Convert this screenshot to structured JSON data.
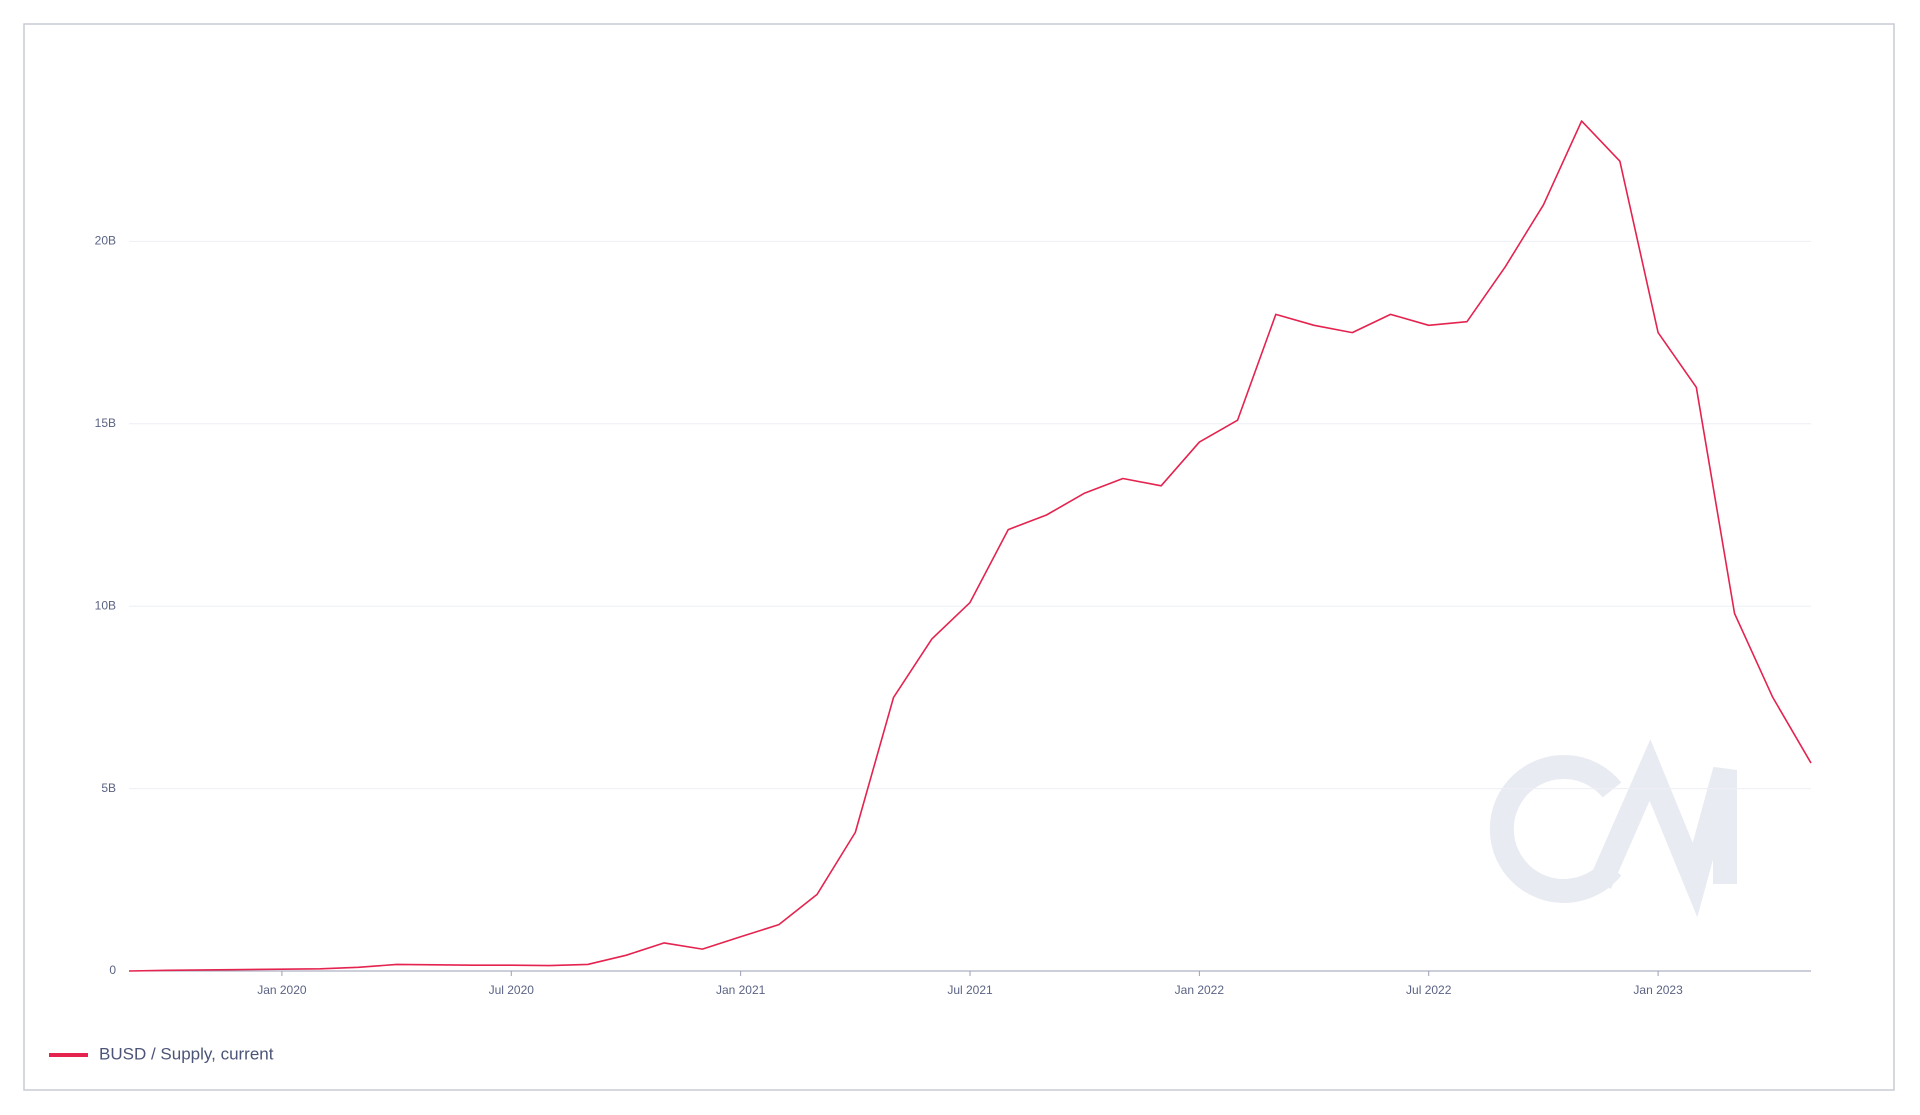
{
  "chart_data": {
    "type": "line",
    "x": [
      "2019-09",
      "2019-10",
      "2019-11",
      "2019-12",
      "2020-01",
      "2020-02",
      "2020-03",
      "2020-04",
      "2020-05",
      "2020-06",
      "2020-07",
      "2020-08",
      "2020-09",
      "2020-10",
      "2020-11",
      "2020-12",
      "2021-01",
      "2021-02",
      "2021-03",
      "2021-04",
      "2021-05",
      "2021-06",
      "2021-07",
      "2021-08",
      "2021-09",
      "2021-10",
      "2021-11",
      "2021-12",
      "2022-01",
      "2022-02",
      "2022-03",
      "2022-04",
      "2022-05",
      "2022-06",
      "2022-07",
      "2022-08",
      "2022-09",
      "2022-10",
      "2022-11",
      "2022-12",
      "2023-01",
      "2023-02",
      "2023-03",
      "2023-04",
      "2023-05"
    ],
    "series": [
      {
        "name": "BUSD / Supply, current",
        "color": "#e4234f",
        "values": [
          0,
          20000000,
          30000000,
          40000000,
          50000000,
          60000000,
          100000000,
          180000000,
          170000000,
          160000000,
          160000000,
          150000000,
          180000000,
          430000000,
          770000000,
          600000000,
          940000000,
          1270000000,
          2100000000,
          3800000000,
          7500000000,
          9100000000,
          10100000000,
          12100000000,
          12500000000,
          13100000000,
          13500000000,
          13300000000,
          14500000000,
          15100000000,
          18000000000,
          17700000000,
          17500000000,
          18000000000,
          17700000000,
          17800000000,
          19300000000,
          21000000000,
          23300000000,
          22200000000,
          17500000000,
          16000000000,
          9800000000,
          7500000000,
          5700000000
        ]
      }
    ],
    "xlim": [
      "2019-09",
      "2023-05"
    ],
    "xticks": [
      {
        "value": "2020-01",
        "label": "Jan 2020"
      },
      {
        "value": "2020-07",
        "label": "Jul 2020"
      },
      {
        "value": "2021-01",
        "label": "Jan 2021"
      },
      {
        "value": "2021-07",
        "label": "Jul 2021"
      },
      {
        "value": "2022-01",
        "label": "Jan 2022"
      },
      {
        "value": "2022-07",
        "label": "Jul 2022"
      },
      {
        "value": "2023-01",
        "label": "Jan 2023"
      }
    ],
    "ylim": [
      0,
      25000000000
    ],
    "yticks": [
      0,
      {
        "value": 5000000000,
        "label": "5B"
      },
      {
        "value": 10000000000,
        "label": "10B"
      },
      {
        "value": 15000000000,
        "label": "15B"
      },
      {
        "value": 20000000000,
        "label": "20B"
      }
    ],
    "grid": true
  }
}
